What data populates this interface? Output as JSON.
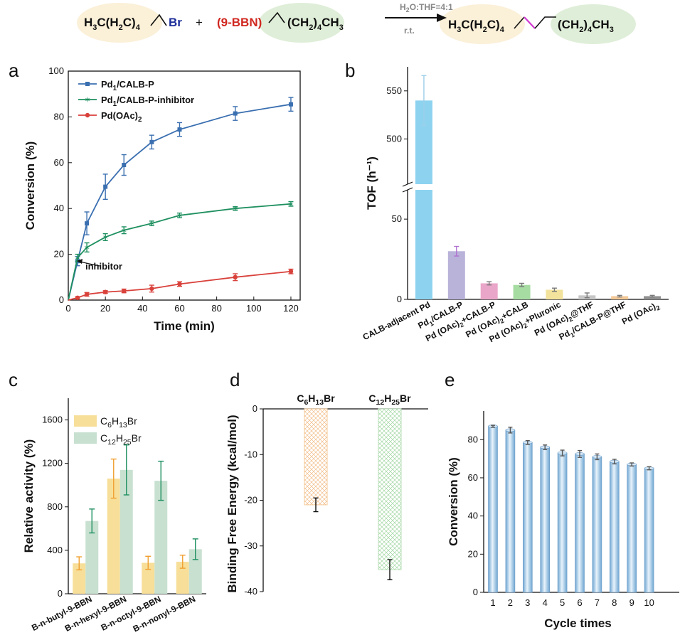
{
  "scheme": {
    "reactant1": "H3C(H2C)4",
    "reactant1_br": "Br",
    "plus": "+",
    "reactant2_bbn": "(9-BBN)",
    "reactant2_tail": "(CH2)4CH3",
    "conditions_top": "H2O:THF=4:1",
    "conditions_bottom": "r.t.",
    "product_left": "H3C(H2C)4",
    "product_right": "(CH2)4CH3"
  },
  "panel_labels": [
    "a",
    "b",
    "c",
    "d",
    "e"
  ],
  "chart_data": [
    {
      "panel": "a",
      "type": "line",
      "xlabel": "Time (min)",
      "ylabel": "Conversion (%)",
      "xlim": [
        0,
        125
      ],
      "ylim": [
        0,
        100
      ],
      "xticks": [
        0,
        20,
        40,
        60,
        80,
        100,
        120
      ],
      "yticks": [
        0,
        20,
        40,
        60,
        80,
        100
      ],
      "annotation": "inhibitor",
      "legend_position": "top-left",
      "series": [
        {
          "name": "Pd1/CALB-P",
          "color": "#3a6fb0",
          "marker": "square",
          "x": [
            5,
            10,
            20,
            30,
            45,
            60,
            90,
            120
          ],
          "y": [
            17,
            33.5,
            49.5,
            59,
            69,
            74.5,
            81.5,
            85.5
          ],
          "err": [
            2,
            5,
            5.5,
            4.5,
            3,
            3,
            3,
            3
          ]
        },
        {
          "name": "Pd1/CALB-P-inhibitor",
          "color": "#1f9060",
          "marker": "star",
          "x": [
            5,
            10,
            20,
            30,
            45,
            60,
            90,
            120
          ],
          "y": [
            18.5,
            23,
            27.5,
            30.5,
            33.5,
            37,
            40,
            42
          ],
          "err": [
            1.5,
            2,
            1.5,
            1.5,
            1,
            1,
            0.8,
            1
          ]
        },
        {
          "name": "Pd(OAc)2",
          "color": "#d9413b",
          "marker": "circle",
          "x": [
            5,
            10,
            20,
            30,
            45,
            60,
            90,
            120
          ],
          "y": [
            1,
            2.5,
            3.5,
            4,
            5,
            7,
            10,
            12.5
          ],
          "err": [
            0.5,
            0.8,
            0.6,
            0.8,
            1.5,
            1,
            1.5,
            1
          ]
        }
      ]
    },
    {
      "panel": "b",
      "type": "bar",
      "ylabel": "TOF (h⁻¹)",
      "axis_break": [
        70,
        450
      ],
      "yticks": [
        0,
        50,
        500,
        550
      ],
      "categories": [
        "CALB-adjacent Pd",
        "Pd1/CALB-P",
        "Pd (OAc)2+CALB-P",
        "Pd (OAc)2+CALB",
        "Pd (OAc)2+Pluronic",
        "Pd (OAc)2@THF",
        "Pd1/CALB-P@THF",
        "Pd (OAc)2"
      ],
      "values": [
        540,
        30,
        10,
        9,
        6,
        2.5,
        2,
        2
      ],
      "err": [
        26,
        3,
        1,
        1,
        1,
        1.5,
        0.5,
        0.5
      ],
      "colors": [
        "#8dd3f0",
        "#b9b3da",
        "#e9a6c8",
        "#a6dca2",
        "#f3e29c",
        "#c6c6c6",
        "#f3c896",
        "#909090"
      ]
    },
    {
      "panel": "c",
      "type": "bar",
      "ylabel": "Relative activity (%)",
      "ylim": [
        0,
        1800
      ],
      "yticks": [
        0,
        400,
        800,
        1200,
        1600
      ],
      "categories": [
        "B-n-butyl-9-BBN",
        "B-n-hexyl-9-BBN",
        "B-n-octyl-9-BBN",
        "B-n-nonyl-9-BBN"
      ],
      "legend_position": "top-left",
      "series": [
        {
          "name": "C6H13Br",
          "color": "#f7df9a",
          "errcolor": "#f0a030",
          "values": [
            280,
            1060,
            285,
            295
          ],
          "err": [
            60,
            180,
            60,
            60
          ]
        },
        {
          "name": "C12H25Br",
          "color": "#c8e0d0",
          "errcolor": "#1f9060",
          "values": [
            670,
            1140,
            1040,
            410
          ],
          "err": [
            110,
            230,
            180,
            95
          ]
        }
      ]
    },
    {
      "panel": "d",
      "type": "bar",
      "ylabel": "Binding Free Energy (kcal/mol)",
      "ylim": [
        -40,
        0
      ],
      "yticks": [
        -40,
        -30,
        -20,
        -10,
        0
      ],
      "categories": [
        "C6H13Br",
        "C12H25Br"
      ],
      "values": [
        -21,
        -35.2
      ],
      "err": [
        1.5,
        2.2
      ],
      "colors": [
        "#f5c896",
        "#b8dfb8"
      ]
    },
    {
      "panel": "e",
      "type": "bar",
      "xlabel": "Cycle times",
      "ylabel": "Conversion (%)",
      "ylim": [
        0,
        95
      ],
      "yticks": [
        0,
        20,
        40,
        60,
        80
      ],
      "categories": [
        "1",
        "2",
        "3",
        "4",
        "5",
        "6",
        "7",
        "8",
        "9",
        "10"
      ],
      "values": [
        87,
        85,
        78.5,
        76,
        73,
        72.5,
        71,
        68.5,
        67,
        65
      ],
      "err": [
        0.5,
        1.5,
        1,
        1.2,
        1.5,
        1.8,
        1.5,
        1.2,
        0.8,
        0.8
      ],
      "color": "#9cc7e6"
    }
  ]
}
